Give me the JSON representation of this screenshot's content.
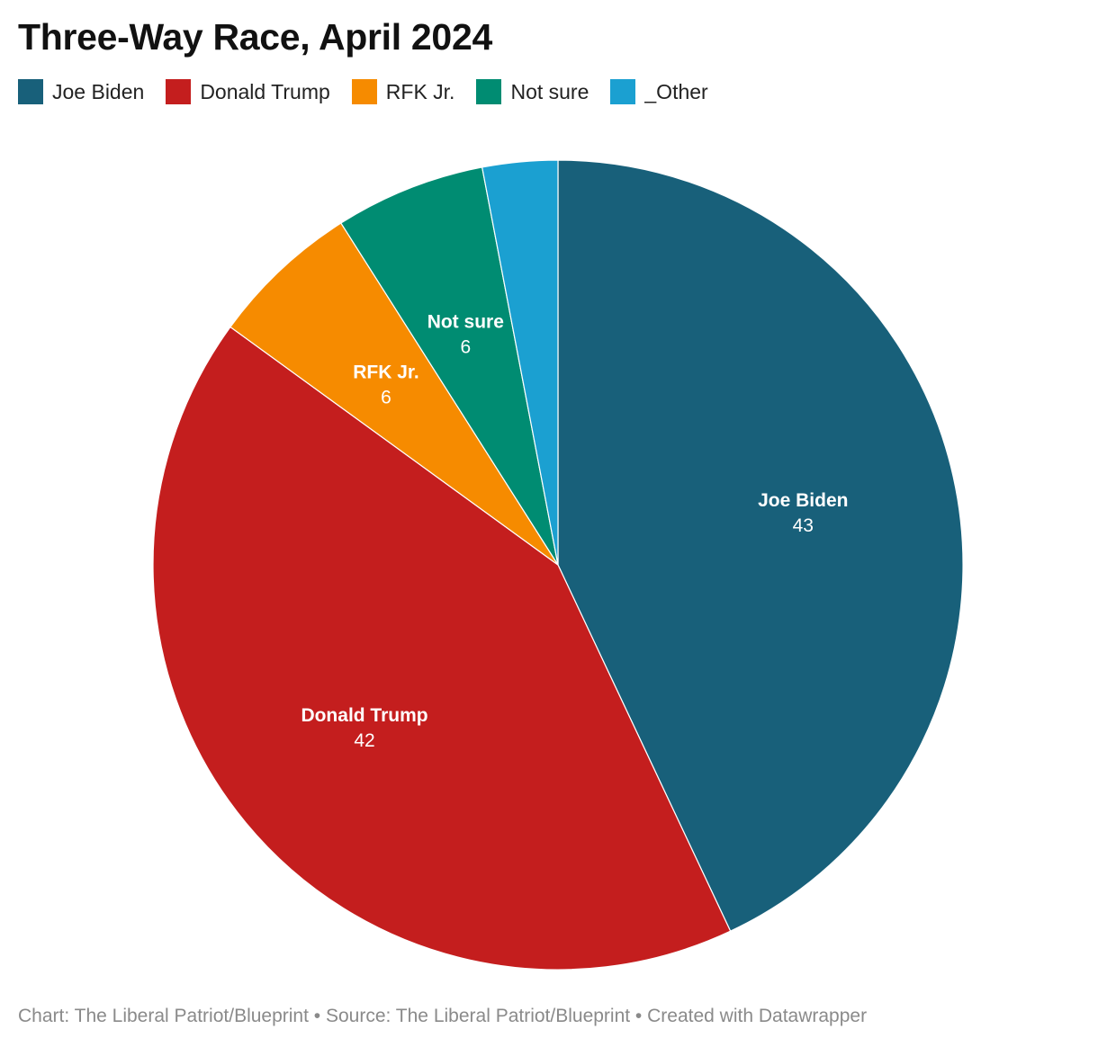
{
  "title": "Three-Way Race, April 2024",
  "footer": "Chart: The Liberal Patriot/Blueprint • Source: The Liberal Patriot/Blueprint • Created with Datawrapper",
  "chart_data": {
    "type": "pie",
    "title": "Three-Way Race, April 2024",
    "legend_position": "top-left",
    "slices": [
      {
        "name": "Joe Biden",
        "value": 43,
        "color": "#18607a",
        "show_label": true
      },
      {
        "name": "Donald Trump",
        "value": 42,
        "color": "#c41e1e",
        "show_label": true
      },
      {
        "name": "RFK Jr.",
        "value": 6,
        "color": "#f68b00",
        "show_label": true
      },
      {
        "name": "Not sure",
        "value": 6,
        "color": "#008c72",
        "show_label": true
      },
      {
        "name": "_Other",
        "value": 3,
        "color": "#1ba0d1",
        "show_label": false
      }
    ]
  }
}
